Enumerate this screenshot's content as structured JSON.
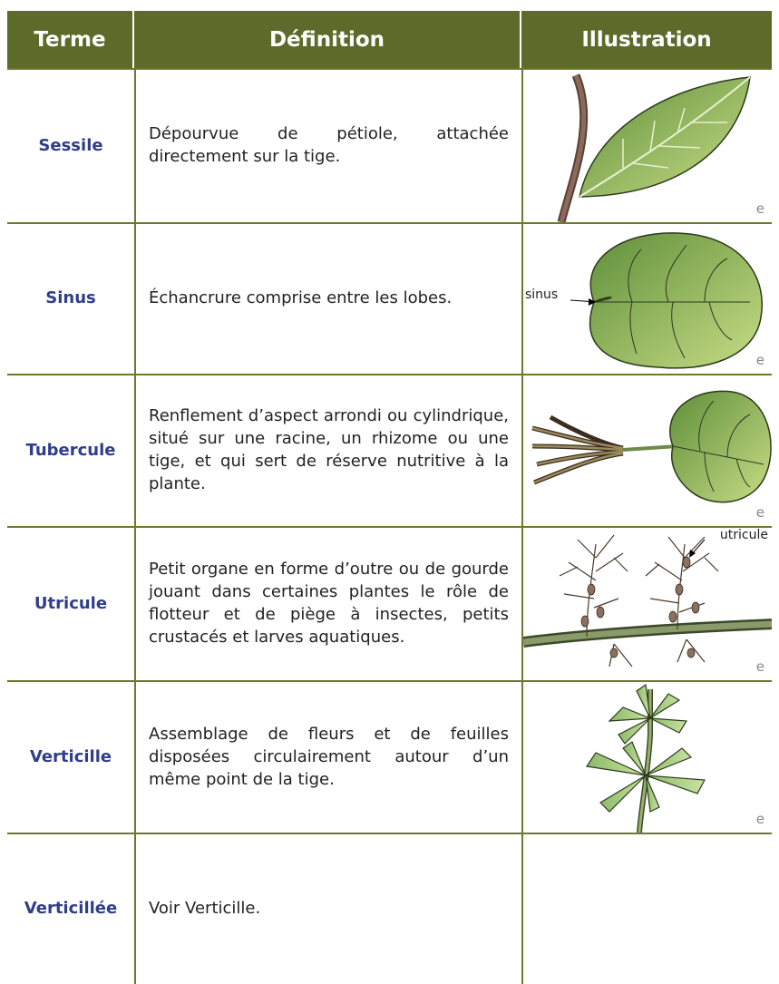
{
  "table": {
    "headers": [
      "Terme",
      "Définition",
      "Illustration"
    ],
    "rows": [
      {
        "term": "Sessile",
        "definition": "Dépourvue de pétiole, attachée directement sur la tige.",
        "illustration": {
          "labels": [],
          "credit": "e"
        }
      },
      {
        "term": "Sinus",
        "definition": "Échancrure comprise entre les lobes.",
        "illustration": {
          "labels": [
            "sinus"
          ],
          "credit": "e"
        }
      },
      {
        "term": "Tubercule",
        "definition": "Renflement d’aspect arrondi ou cylindrique, situé sur une racine, un rhizome ou une tige, et qui sert de réserve nutritive à la plante.",
        "illustration": {
          "labels": [],
          "credit": "e"
        }
      },
      {
        "term": "Utricule",
        "definition": "Petit organe en forme d’outre ou de gourde jouant dans certaines plantes le rôle de flotteur et de piège à insectes, petits crustacés et larves aquatiques.",
        "illustration": {
          "labels": [
            "utricule"
          ],
          "credit": "e"
        }
      },
      {
        "term": "Verticille",
        "definition": "Assemblage de fleurs et de feuilles disposées circulairement autour d’un même point de la tige.",
        "illustration": {
          "labels": [],
          "credit": "e"
        }
      },
      {
        "term": "Verticillée",
        "definition": "Voir Verticille.",
        "illustration": {
          "labels": [],
          "credit": null
        }
      }
    ]
  }
}
